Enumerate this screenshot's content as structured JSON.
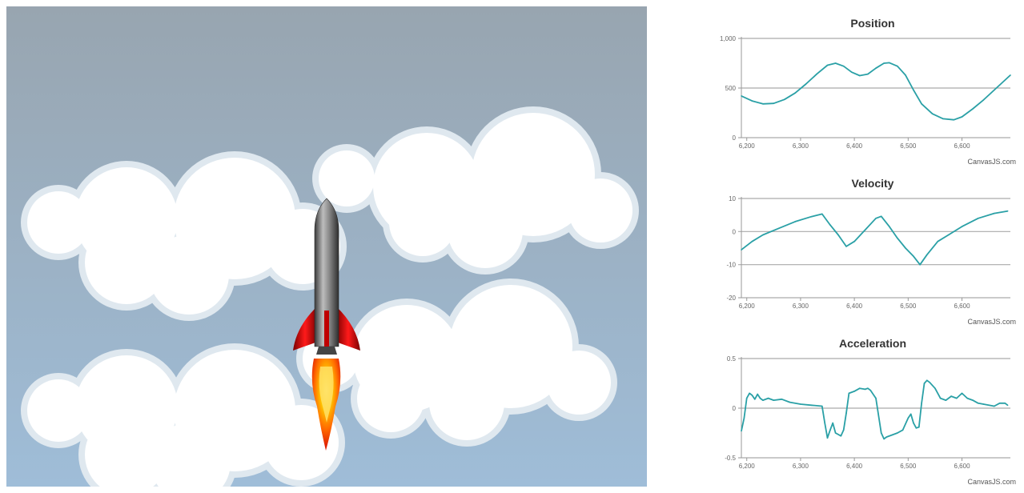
{
  "scene": {
    "sky_top": "#98a5b0",
    "sky_bottom": "#9fbdd8",
    "rocket_body": "#7a7a7a",
    "rocket_fins": "#d00000",
    "flame_outer": "#e02000",
    "flame_inner": "#ffd400"
  },
  "series_color": "#2aa0a6",
  "chart_data": [
    {
      "type": "line",
      "title": "Position",
      "xlim": [
        6190,
        6690
      ],
      "ylim": [
        0,
        1000
      ],
      "xticks": [
        6200,
        6300,
        6400,
        6500,
        6600
      ],
      "xtick_labels": [
        "6,200",
        "6,300",
        "6,400",
        "6,500",
        "6,600"
      ],
      "yticks": [
        0,
        500,
        1000
      ],
      "ytick_labels": [
        "0",
        "500",
        "1,000"
      ],
      "x": [
        6190,
        6210,
        6230,
        6250,
        6270,
        6290,
        6310,
        6330,
        6350,
        6365,
        6380,
        6395,
        6410,
        6425,
        6440,
        6455,
        6465,
        6480,
        6495,
        6510,
        6525,
        6545,
        6565,
        6585,
        6600,
        6620,
        6640,
        6660,
        6690
      ],
      "values": [
        420,
        370,
        340,
        345,
        385,
        450,
        540,
        640,
        730,
        750,
        720,
        660,
        625,
        640,
        700,
        750,
        755,
        720,
        630,
        480,
        340,
        240,
        190,
        180,
        210,
        290,
        380,
        480,
        630
      ],
      "credit": "CanvasJS.com"
    },
    {
      "type": "line",
      "title": "Velocity",
      "xlim": [
        6190,
        6690
      ],
      "ylim": [
        -20,
        10
      ],
      "xticks": [
        6200,
        6300,
        6400,
        6500,
        6600
      ],
      "xtick_labels": [
        "6,200",
        "6,300",
        "6,400",
        "6,500",
        "6,600"
      ],
      "yticks": [
        -20,
        -10,
        0,
        10
      ],
      "ytick_labels": [
        "-20",
        "-10",
        "0",
        "10"
      ],
      "x": [
        6190,
        6210,
        6230,
        6260,
        6290,
        6320,
        6340,
        6355,
        6370,
        6385,
        6400,
        6420,
        6440,
        6450,
        6465,
        6480,
        6495,
        6510,
        6522,
        6535,
        6555,
        6575,
        6600,
        6630,
        6660,
        6685
      ],
      "values": [
        -5.5,
        -3,
        -1,
        1,
        3,
        4.5,
        5.3,
        2,
        -1,
        -4.5,
        -3,
        0.5,
        4,
        4.6,
        1.5,
        -2,
        -5,
        -7.5,
        -10,
        -7,
        -3,
        -1,
        1.5,
        4,
        5.5,
        6.2
      ],
      "credit": "CanvasJS.com"
    },
    {
      "type": "line",
      "title": "Acceleration",
      "xlim": [
        6190,
        6690
      ],
      "ylim": [
        -0.5,
        0.5
      ],
      "xticks": [
        6200,
        6300,
        6400,
        6500,
        6600
      ],
      "xtick_labels": [
        "6,200",
        "6,300",
        "6,400",
        "6,500",
        "6,600"
      ],
      "yticks": [
        -0.5,
        0,
        0.5
      ],
      "ytick_labels": [
        "-0.5",
        "0",
        "0.5"
      ],
      "x": [
        6190,
        6195,
        6200,
        6205,
        6210,
        6215,
        6220,
        6225,
        6230,
        6240,
        6250,
        6265,
        6280,
        6300,
        6320,
        6340,
        6345,
        6350,
        6355,
        6360,
        6365,
        6375,
        6380,
        6385,
        6390,
        6400,
        6410,
        6420,
        6425,
        6430,
        6440,
        6450,
        6455,
        6460,
        6470,
        6480,
        6490,
        6500,
        6505,
        6510,
        6515,
        6520,
        6525,
        6530,
        6535,
        6540,
        6550,
        6560,
        6570,
        6580,
        6590,
        6600,
        6610,
        6620,
        6630,
        6640,
        6650,
        6660,
        6670,
        6680,
        6685
      ],
      "values": [
        -0.23,
        -0.1,
        0.1,
        0.15,
        0.13,
        0.09,
        0.14,
        0.1,
        0.08,
        0.1,
        0.08,
        0.09,
        0.06,
        0.04,
        0.03,
        0.02,
        -0.15,
        -0.3,
        -0.22,
        -0.15,
        -0.25,
        -0.28,
        -0.22,
        -0.05,
        0.15,
        0.17,
        0.2,
        0.19,
        0.2,
        0.18,
        0.1,
        -0.25,
        -0.31,
        -0.29,
        -0.27,
        -0.25,
        -0.22,
        -0.1,
        -0.06,
        -0.15,
        -0.2,
        -0.19,
        0.05,
        0.25,
        0.28,
        0.26,
        0.2,
        0.1,
        0.08,
        0.12,
        0.1,
        0.15,
        0.1,
        0.08,
        0.05,
        0.04,
        0.03,
        0.02,
        0.05,
        0.05,
        0.03
      ],
      "credit": "CanvasJS.com"
    }
  ]
}
